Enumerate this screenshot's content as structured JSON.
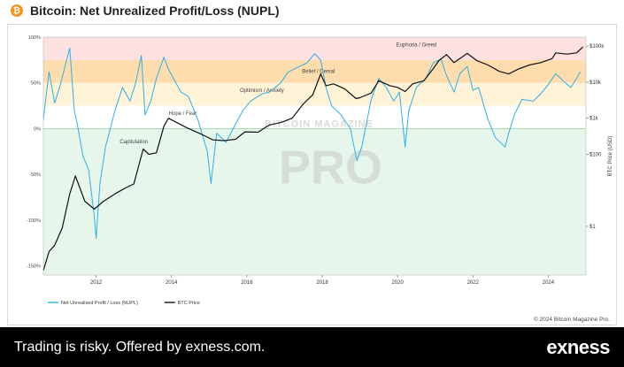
{
  "header": {
    "icon": "bitcoin-icon",
    "icon_glyph": "₿",
    "title": "Bitcoin: Net Unrealized Profit/Loss (NUPL)"
  },
  "watermark": {
    "line1": "BITCOIN MAGAZINE",
    "line2": "PRO"
  },
  "copyright": "© 2024 Bitcoin Magazine Pro.",
  "footer": {
    "disclaimer": "Trading is risky. Offered by exness.com.",
    "logo_text": "exness"
  },
  "chart_data": {
    "type": "line",
    "title": "",
    "xlabel": "",
    "ylabel_right": "BTC Price (USD)",
    "x_range": [
      2010.6,
      2025.0
    ],
    "x_ticks": [
      2012,
      2014,
      2016,
      2018,
      2020,
      2022,
      2024
    ],
    "y_left": {
      "range": [
        -1.6,
        1.0
      ],
      "ticks": [
        {
          "value": 1.0,
          "label": "100%"
        },
        {
          "value": 0.5,
          "label": "50%"
        },
        {
          "value": 0.0,
          "label": "0%"
        },
        {
          "value": -0.5,
          "label": "-50%"
        },
        {
          "value": -1.0,
          "label": "-100%"
        },
        {
          "value": -1.5,
          "label": "-150%"
        }
      ]
    },
    "y_right": {
      "scale": "log",
      "ticks": [
        {
          "value": 100000,
          "label": "$100k"
        },
        {
          "value": 10000,
          "label": "$10k"
        },
        {
          "value": 1000,
          "label": "$1k"
        },
        {
          "value": 100,
          "label": "$100"
        },
        {
          "value": 1,
          "label": "$1"
        }
      ]
    },
    "zones": [
      {
        "label": "Euphoria / Greed",
        "from": 0.75,
        "to": 1.0,
        "color": "#fde0e0"
      },
      {
        "label": "Belief / Denial",
        "from": 0.5,
        "to": 0.75,
        "color": "#fddcae"
      },
      {
        "label": "Optimism / Anxiety",
        "from": 0.25,
        "to": 0.5,
        "color": "#fef3d6"
      },
      {
        "label": "Hope / Fear",
        "from": 0.0,
        "to": 0.25,
        "color": "#ffffff"
      },
      {
        "label": "Capitulation",
        "from": -1.6,
        "to": 0.0,
        "color": "#e7f6ea"
      }
    ],
    "legend_position": "bottom-left",
    "grid": false,
    "series": [
      {
        "name": "Net Unrealised Profit / Loss (NUPL)",
        "axis": "left",
        "color": "#2fb0e8",
        "x": [
          2010.6,
          2010.75,
          2010.9,
          2011.05,
          2011.2,
          2011.3,
          2011.42,
          2011.5,
          2011.65,
          2011.8,
          2011.95,
          2012.0,
          2012.1,
          2012.25,
          2012.5,
          2012.7,
          2012.9,
          2013.05,
          2013.2,
          2013.3,
          2013.45,
          2013.6,
          2013.8,
          2013.92,
          2014.05,
          2014.25,
          2014.45,
          2014.7,
          2014.95,
          2015.05,
          2015.2,
          2015.45,
          2015.7,
          2015.9,
          2016.1,
          2016.4,
          2016.6,
          2016.9,
          2017.1,
          2017.4,
          2017.6,
          2017.8,
          2017.96,
          2018.1,
          2018.25,
          2018.5,
          2018.75,
          2018.92,
          2019.05,
          2019.3,
          2019.5,
          2019.7,
          2019.9,
          2020.05,
          2020.2,
          2020.3,
          2020.5,
          2020.75,
          2020.95,
          2021.15,
          2021.3,
          2021.5,
          2021.65,
          2021.85,
          2022.0,
          2022.15,
          2022.4,
          2022.6,
          2022.85,
          2022.95,
          2023.1,
          2023.3,
          2023.6,
          2023.8,
          2024.0,
          2024.2,
          2024.4,
          2024.6,
          2024.75,
          2024.85
        ],
        "values": [
          0.1,
          0.62,
          0.28,
          0.48,
          0.72,
          0.88,
          0.2,
          0.05,
          -0.3,
          -0.45,
          -0.95,
          -1.2,
          -0.6,
          -0.2,
          0.2,
          0.45,
          0.3,
          0.5,
          0.8,
          0.15,
          0.3,
          0.55,
          0.78,
          0.65,
          0.55,
          0.4,
          0.35,
          0.1,
          -0.25,
          -0.6,
          -0.05,
          -0.15,
          0.05,
          0.2,
          0.3,
          0.38,
          0.4,
          0.5,
          0.62,
          0.68,
          0.72,
          0.82,
          0.75,
          0.45,
          0.25,
          0.15,
          0.0,
          -0.35,
          -0.2,
          0.32,
          0.55,
          0.45,
          0.3,
          0.4,
          -0.2,
          0.2,
          0.45,
          0.55,
          0.72,
          0.76,
          0.58,
          0.4,
          0.6,
          0.68,
          0.42,
          0.45,
          0.1,
          -0.1,
          -0.2,
          -0.05,
          0.15,
          0.32,
          0.3,
          0.38,
          0.48,
          0.6,
          0.52,
          0.45,
          0.55,
          0.62
        ]
      },
      {
        "name": "BTC Price",
        "axis": "right",
        "color": "#111111",
        "x": [
          2010.6,
          2010.75,
          2010.9,
          2011.1,
          2011.3,
          2011.45,
          2011.7,
          2011.95,
          2012.2,
          2012.5,
          2012.8,
          2013.0,
          2013.25,
          2013.4,
          2013.6,
          2013.8,
          2013.92,
          2014.1,
          2014.4,
          2014.7,
          2014.95,
          2015.1,
          2015.4,
          2015.7,
          2015.95,
          2016.3,
          2016.6,
          2016.9,
          2017.2,
          2017.5,
          2017.75,
          2017.96,
          2018.1,
          2018.3,
          2018.6,
          2018.9,
          2019.0,
          2019.3,
          2019.5,
          2019.8,
          2020.0,
          2020.2,
          2020.4,
          2020.7,
          2020.95,
          2021.1,
          2021.3,
          2021.5,
          2021.85,
          2022.1,
          2022.4,
          2022.7,
          2022.95,
          2023.2,
          2023.5,
          2023.8,
          2024.1,
          2024.2,
          2024.5,
          2024.75,
          2024.92
        ],
        "values": [
          0.06,
          0.2,
          0.3,
          0.9,
          8,
          25,
          5,
          3,
          5,
          8,
          12,
          15,
          140,
          100,
          110,
          600,
          1000,
          800,
          550,
          400,
          300,
          250,
          240,
          260,
          420,
          410,
          650,
          760,
          1000,
          2500,
          4500,
          17000,
          8000,
          9000,
          6500,
          3500,
          3700,
          5000,
          11000,
          8000,
          7200,
          5500,
          9000,
          11000,
          24000,
          40000,
          58000,
          35000,
          63000,
          40000,
          30000,
          20000,
          17000,
          23000,
          30000,
          35000,
          45000,
          65000,
          60000,
          65000,
          95000
        ]
      }
    ]
  }
}
